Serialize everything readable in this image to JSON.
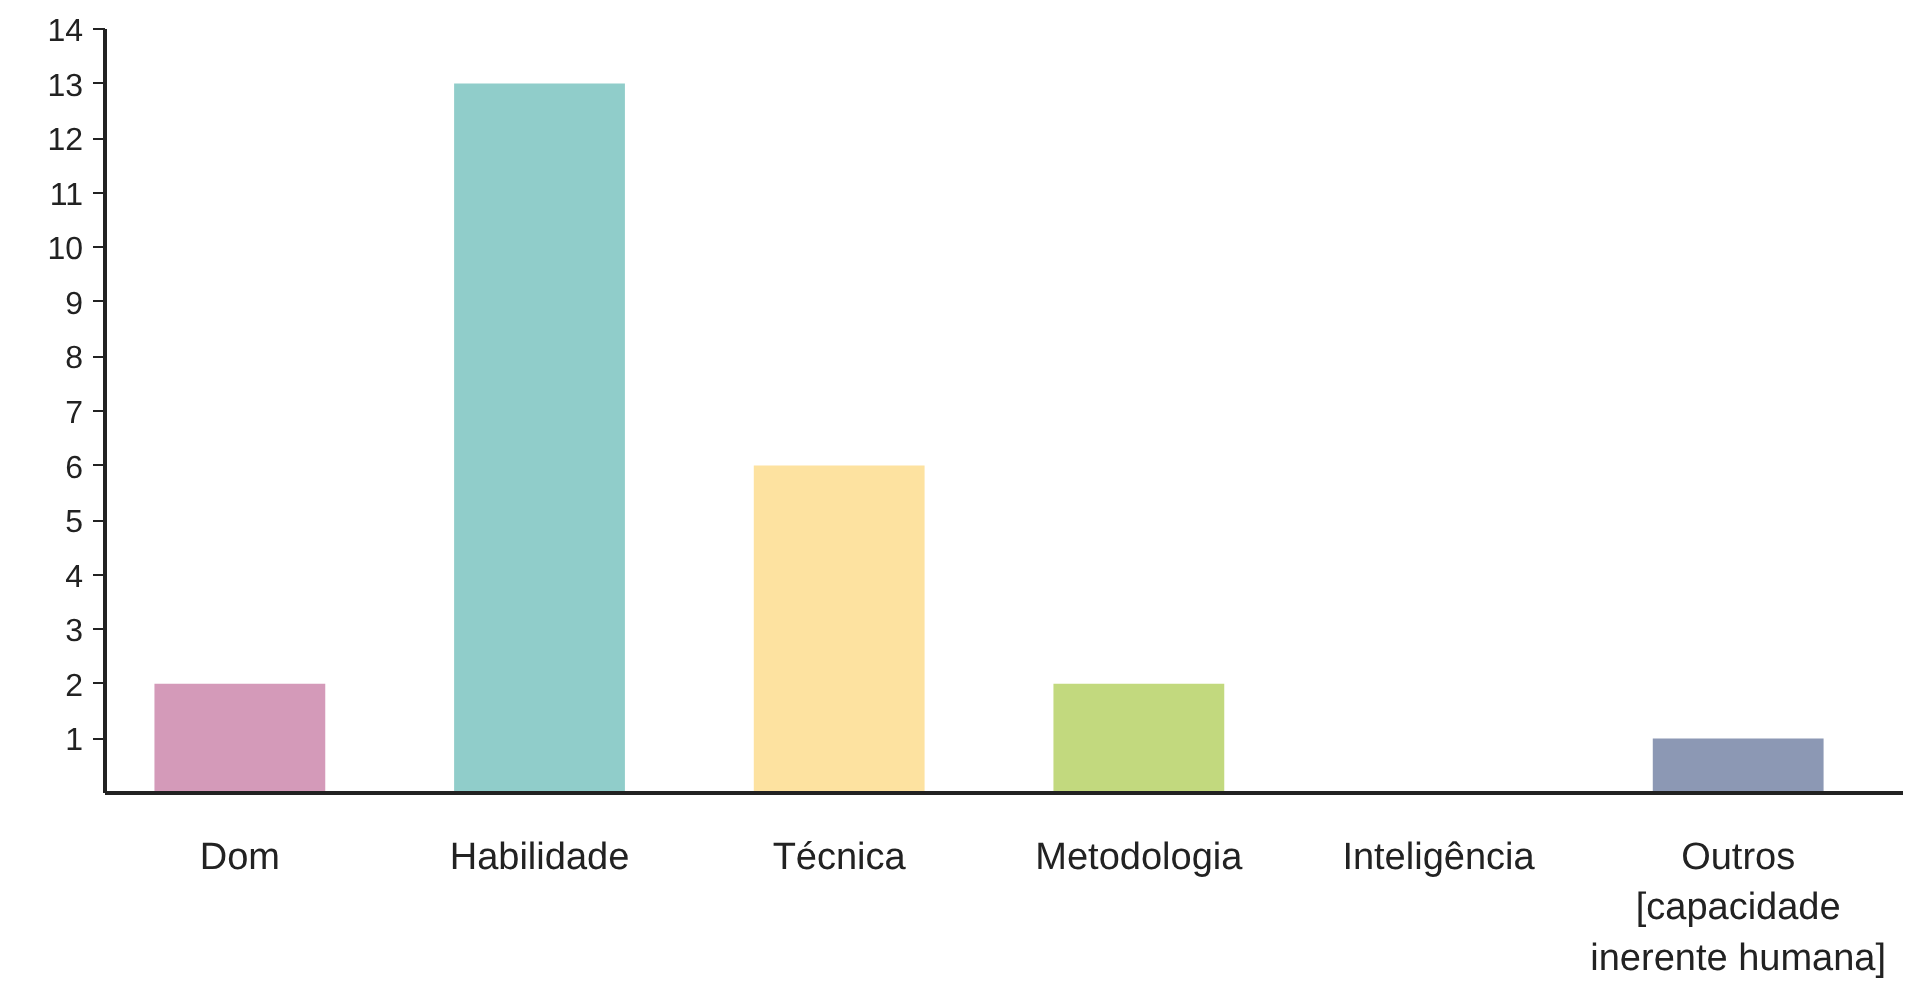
{
  "chart_data": {
    "type": "bar",
    "categories": [
      "Dom",
      "Habilidade",
      "Técnica",
      "Metodologia",
      "Inteligência",
      "Outros\n[capacidade\ninerente humana]"
    ],
    "values": [
      2,
      13,
      6,
      2,
      0,
      1
    ],
    "colors": [
      "#d49ab9",
      "#90cdca",
      "#fde2a0",
      "#c2d97e",
      "#c2d97e",
      "#8c98b4"
    ],
    "ylim": [
      0,
      14
    ],
    "yticks": [
      1,
      2,
      3,
      4,
      5,
      6,
      7,
      8,
      9,
      10,
      11,
      12,
      13,
      14
    ],
    "grid": false
  }
}
